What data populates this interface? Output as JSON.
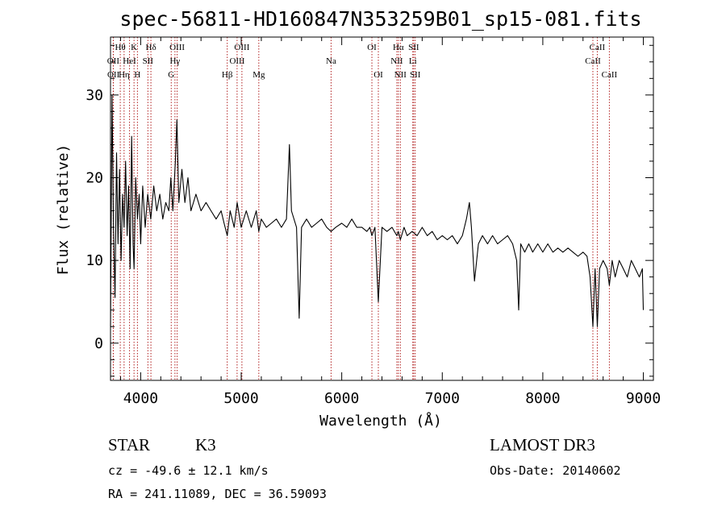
{
  "chart_data": {
    "type": "line",
    "title": "spec-56811-HD160847N353259B01_sp15-081.fits",
    "xlabel": "Wavelength (Å)",
    "ylabel": "Flux (relative)",
    "xlim": [
      3700,
      9100
    ],
    "ylim": [
      -4.5,
      37
    ],
    "xticks": [
      4000,
      5000,
      6000,
      7000,
      8000,
      9000
    ],
    "yticks": [
      0,
      10,
      20,
      30
    ],
    "grid": false,
    "line_color": "#000000",
    "marker_color": "#b22222",
    "lines": [
      {
        "label": "OII",
        "wl": 3727,
        "row": 2
      },
      {
        "label": "OII",
        "wl": 3729,
        "row": 3
      },
      {
        "label": "Hθ",
        "wl": 3797,
        "row": 1
      },
      {
        "label": "Hη",
        "wl": 3835,
        "row": 3
      },
      {
        "label": "HeI",
        "wl": 3889,
        "row": 2
      },
      {
        "label": "K",
        "wl": 3934,
        "row": 1
      },
      {
        "label": "H",
        "wl": 3968,
        "row": 3
      },
      {
        "label": "SII",
        "wl": 4072,
        "row": 2
      },
      {
        "label": "Hδ",
        "wl": 4102,
        "row": 1
      },
      {
        "label": "G",
        "wl": 4304,
        "row": 3
      },
      {
        "label": "Hγ",
        "wl": 4341,
        "row": 2
      },
      {
        "label": "OIII",
        "wl": 4363,
        "row": 1
      },
      {
        "label": "Hβ",
        "wl": 4861,
        "row": 3
      },
      {
        "label": "OIII",
        "wl": 4959,
        "row": 2
      },
      {
        "label": "OIII",
        "wl": 5007,
        "row": 1
      },
      {
        "label": "Mg",
        "wl": 5175,
        "row": 3
      },
      {
        "label": "Na",
        "wl": 5894,
        "row": 2
      },
      {
        "label": "OI",
        "wl": 6300,
        "row": 1
      },
      {
        "label": "OI",
        "wl": 6364,
        "row": 3
      },
      {
        "label": "NII",
        "wl": 6548,
        "row": 2
      },
      {
        "label": "Hα",
        "wl": 6563,
        "row": 1
      },
      {
        "label": "NII",
        "wl": 6583,
        "row": 3
      },
      {
        "label": "Li",
        "wl": 6707,
        "row": 2
      },
      {
        "label": "SII",
        "wl": 6716,
        "row": 1
      },
      {
        "label": "SII",
        "wl": 6731,
        "row": 3
      },
      {
        "label": "CaII",
        "wl": 8498,
        "row": 2
      },
      {
        "label": "CaII",
        "wl": 8542,
        "row": 1
      },
      {
        "label": "CaII",
        "wl": 8662,
        "row": 3
      }
    ],
    "series": [
      {
        "name": "flux",
        "x": [
          3700,
          3715,
          3730,
          3745,
          3760,
          3775,
          3790,
          3805,
          3820,
          3835,
          3850,
          3865,
          3880,
          3895,
          3910,
          3925,
          3934,
          3950,
          3968,
          3985,
          4000,
          4020,
          4045,
          4070,
          4100,
          4130,
          4160,
          4190,
          4220,
          4250,
          4280,
          4300,
          4320,
          4345,
          4360,
          4380,
          4410,
          4440,
          4470,
          4500,
          4550,
          4600,
          4650,
          4700,
          4750,
          4800,
          4830,
          4861,
          4890,
          4930,
          4960,
          5000,
          5050,
          5100,
          5150,
          5175,
          5200,
          5250,
          5300,
          5350,
          5400,
          5450,
          5480,
          5500,
          5550,
          5577,
          5600,
          5650,
          5700,
          5750,
          5800,
          5850,
          5894,
          5940,
          6000,
          6050,
          6100,
          6150,
          6200,
          6250,
          6280,
          6300,
          6330,
          6364,
          6400,
          6450,
          6500,
          6548,
          6563,
          6583,
          6620,
          6650,
          6700,
          6750,
          6800,
          6850,
          6900,
          6950,
          7000,
          7050,
          7100,
          7150,
          7200,
          7240,
          7270,
          7290,
          7320,
          7360,
          7400,
          7450,
          7500,
          7550,
          7600,
          7650,
          7700,
          7740,
          7760,
          7780,
          7820,
          7860,
          7900,
          7950,
          8000,
          8050,
          8100,
          8150,
          8200,
          8250,
          8300,
          8350,
          8400,
          8440,
          8470,
          8498,
          8520,
          8542,
          8565,
          8600,
          8640,
          8662,
          8690,
          8720,
          8760,
          8800,
          8840,
          8880,
          8920,
          8960,
          8990,
          9000
        ],
        "y": [
          2,
          30,
          14,
          5.5,
          23,
          12,
          21,
          10,
          18,
          14,
          22,
          13,
          19,
          9,
          25,
          12,
          9,
          20,
          15,
          18,
          12,
          19,
          14,
          18,
          15,
          19,
          16,
          18,
          15,
          17,
          16,
          20,
          16,
          22,
          27,
          17,
          21,
          17,
          20,
          16,
          18,
          16,
          17,
          16,
          15,
          16,
          14.5,
          13,
          16,
          14,
          17,
          14,
          16,
          14,
          16,
          13.5,
          15,
          14,
          14.5,
          15,
          14,
          15,
          24,
          16,
          14,
          3,
          14,
          15,
          14,
          14.5,
          15,
          14,
          13.5,
          14,
          14.5,
          14,
          15,
          14,
          14,
          13.5,
          14,
          13,
          14,
          5,
          14,
          13.5,
          14,
          13,
          13.5,
          12.5,
          14,
          13,
          13.5,
          13,
          14,
          13,
          13.5,
          12.5,
          13,
          12.5,
          13,
          12,
          13,
          15,
          17,
          14,
          7.5,
          12,
          13,
          12,
          13,
          12,
          12.5,
          13,
          12,
          10,
          4,
          12,
          11,
          12,
          11,
          12,
          11,
          12,
          11,
          11.5,
          11,
          11.5,
          11,
          10.5,
          11,
          10.5,
          8,
          2,
          9,
          2,
          9,
          10,
          9,
          7,
          10,
          8,
          10,
          9,
          8,
          10,
          9,
          8,
          9,
          4
        ]
      }
    ]
  },
  "info": {
    "object_type": "STAR",
    "subclass": "K3",
    "survey": "LAMOST DR3",
    "cz": "cz = -49.6 ± 12.1 km/s",
    "obs_date": "Obs-Date: 20140602",
    "coords": "RA = 241.11089, DEC =  36.59093"
  }
}
